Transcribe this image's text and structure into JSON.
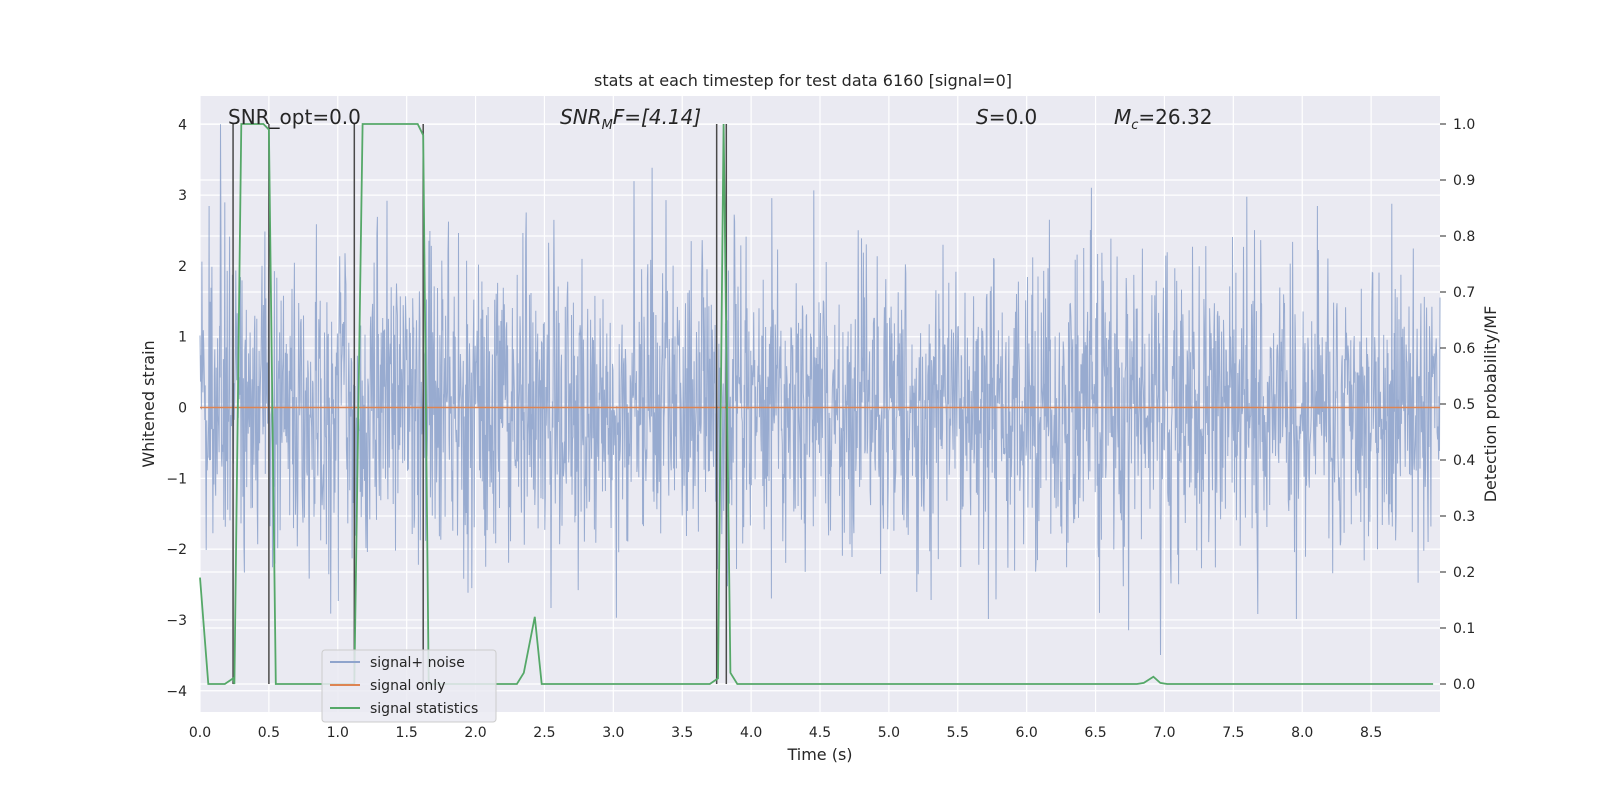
{
  "chart_data": {
    "type": "line",
    "title": "stats at each timestep for test data 6160 [signal=0]",
    "xlabel": "Time (s)",
    "ylabel_left": "Whitened strain",
    "ylabel_right": "Detection probability/MF",
    "xlim": [
      0.0,
      9.0
    ],
    "ylim_left": [
      -4.3,
      4.4
    ],
    "ylim_right": [
      -0.05,
      1.05
    ],
    "xticks": [
      "0.0",
      "0.5",
      "1.0",
      "1.5",
      "2.0",
      "2.5",
      "3.0",
      "3.5",
      "4.0",
      "4.5",
      "5.0",
      "5.5",
      "6.0",
      "6.5",
      "7.0",
      "7.5",
      "8.0",
      "8.5"
    ],
    "yticks_left": [
      "4",
      "3",
      "2",
      "1",
      "0",
      "−1",
      "−2",
      "−3",
      "−4"
    ],
    "yticks_right": [
      "1.0",
      "0.9",
      "0.8",
      "0.7",
      "0.6",
      "0.5",
      "0.4",
      "0.3",
      "0.2",
      "0.1",
      "0.0"
    ],
    "grid": true,
    "legend_position": "lower-left",
    "annotations": {
      "snr_opt": "SNR_opt=0.0",
      "snr_mf_main": "SNR",
      "snr_mf_sub": "M",
      "snr_mf_rest": "F=[4.14]",
      "s_main": "S",
      "s_rest": "=0.0",
      "mc_main": "M",
      "mc_sub": "c",
      "mc_rest": "=26.32"
    },
    "series": [
      {
        "name": "signal+ noise",
        "color": "#8fa4cc",
        "description_values": "noise band roughly -2.5 to 2.5 with spikes up to about 4"
      },
      {
        "name": "signal only",
        "color": "#dd8452",
        "values": [
          0.0,
          0.0
        ]
      },
      {
        "name": "signal statistics",
        "color": "#55a868",
        "x": [
          0.0,
          0.06,
          0.18,
          0.24,
          0.25,
          0.3,
          0.46,
          0.5,
          0.55,
          0.6,
          1.1,
          1.12,
          1.18,
          1.58,
          1.62,
          1.66,
          1.72,
          2.3,
          2.35,
          2.43,
          2.48,
          2.55,
          3.7,
          3.76,
          3.8,
          3.85,
          3.9,
          6.8,
          6.85,
          6.92,
          6.97,
          7.02,
          8.95
        ],
        "y": [
          0.19,
          0.0,
          0.0,
          0.01,
          0.0,
          1.0,
          1.0,
          0.99,
          0.0,
          0.0,
          0.0,
          0.0,
          1.0,
          1.0,
          0.98,
          0.0,
          0.0,
          0.0,
          0.02,
          0.12,
          0.0,
          0.0,
          0.0,
          0.01,
          1.0,
          0.02,
          0.0,
          0.0,
          0.002,
          0.013,
          0.002,
          0.0,
          0.0
        ]
      },
      {
        "name": "detection markers",
        "color": "#4a4a4a",
        "x": [
          0.24,
          0.5,
          1.12,
          1.62,
          3.75,
          3.82
        ]
      }
    ]
  }
}
